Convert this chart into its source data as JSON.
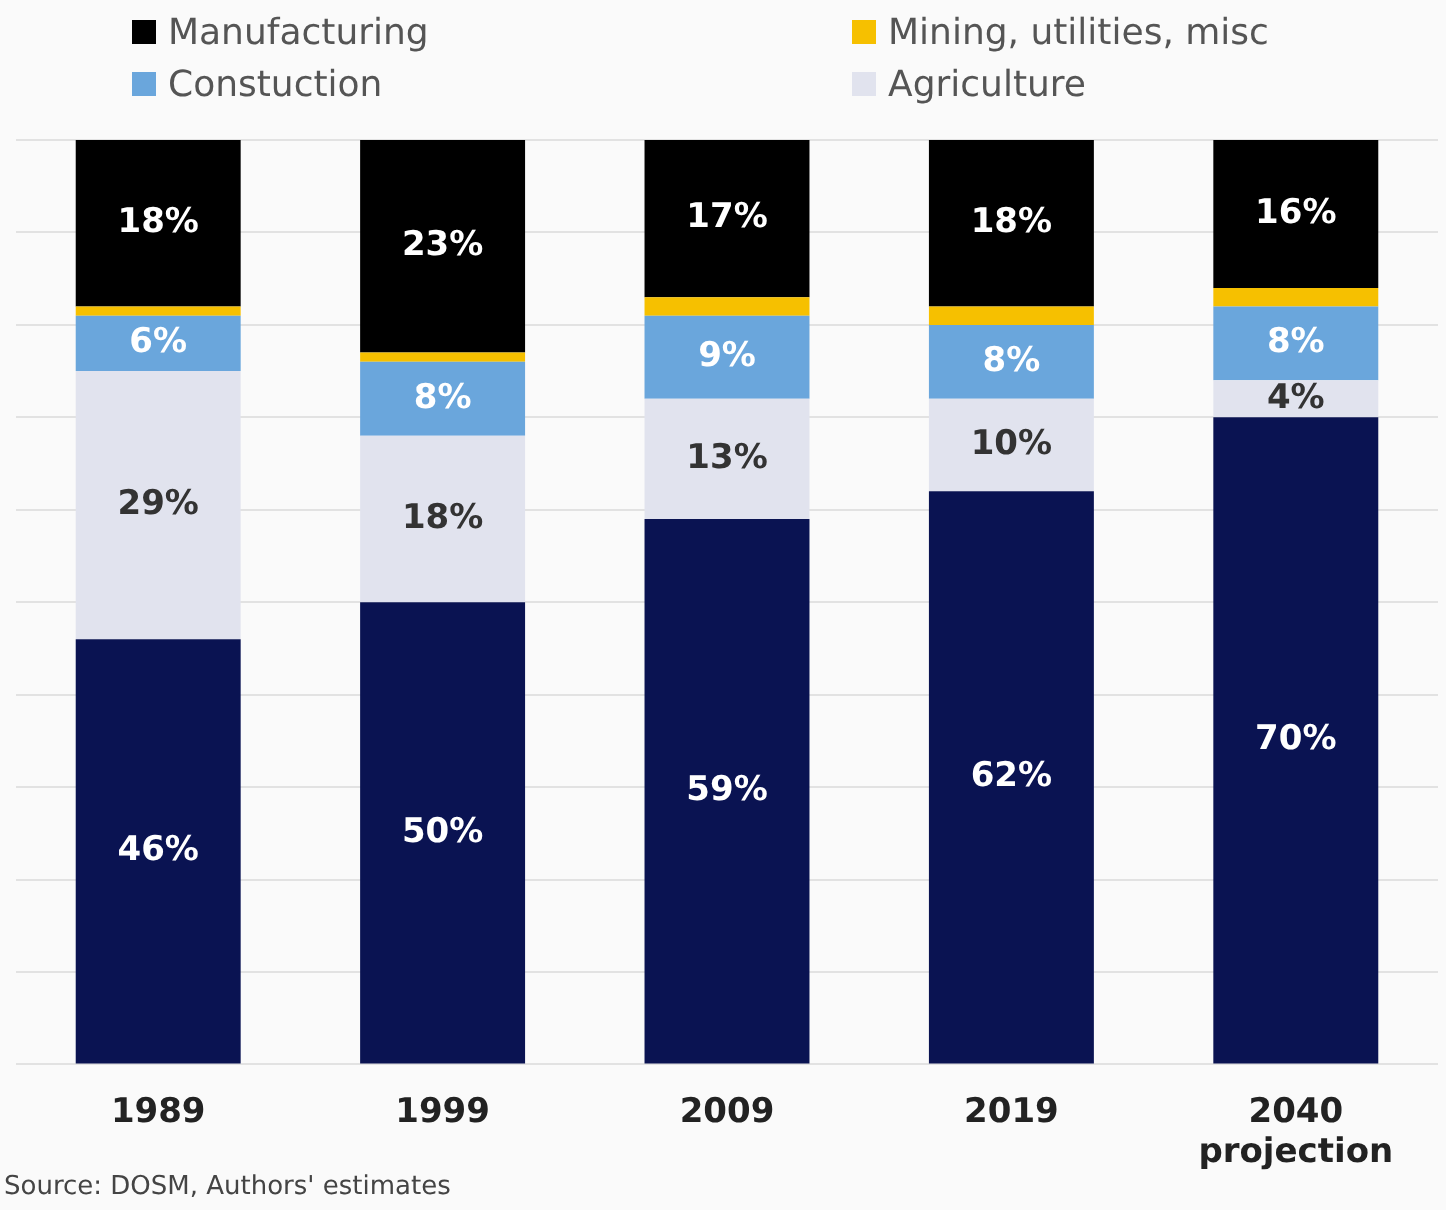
{
  "chart_data": {
    "type": "bar",
    "stacked": true,
    "categories": [
      "1989",
      "1999",
      "2009",
      "2019",
      "2040 projection"
    ],
    "series": [
      {
        "color": "#0a1352",
        "values": [
          46,
          50,
          59,
          62,
          70
        ],
        "value_labels": [
          "46%",
          "50%",
          "59%",
          "62%",
          "70%"
        ]
      },
      {
        "name": "Agriculture",
        "color": "#e1e3ee",
        "values": [
          29,
          18,
          13,
          10,
          4
        ],
        "value_labels": [
          "29%",
          "18%",
          "13%",
          "10%",
          "4%"
        ]
      },
      {
        "name": "Constuction",
        "color": "#6aa6dc",
        "values": [
          6,
          8,
          9,
          8,
          8
        ],
        "value_labels": [
          "6%",
          "8%",
          "9%",
          "8%",
          "8%"
        ]
      },
      {
        "name": "Mining, utilities, misc",
        "color": "#f6c000",
        "values": [
          1,
          1,
          2,
          2,
          2
        ]
      },
      {
        "name": "Manufacturing",
        "color": "#000000",
        "values": [
          18,
          23,
          17,
          18,
          16
        ],
        "value_labels": [
          "18%",
          "23%",
          "17%",
          "18%",
          "16%"
        ]
      }
    ],
    "ylim": [
      0,
      100
    ],
    "yticks": [
      0,
      10,
      20,
      30,
      40,
      50,
      60,
      70,
      80,
      90,
      100
    ],
    "tick_labels": "x",
    "grid": "y",
    "legend": "top",
    "annotations": [
      "Source: DOSM, Authors' estimates"
    ]
  }
}
